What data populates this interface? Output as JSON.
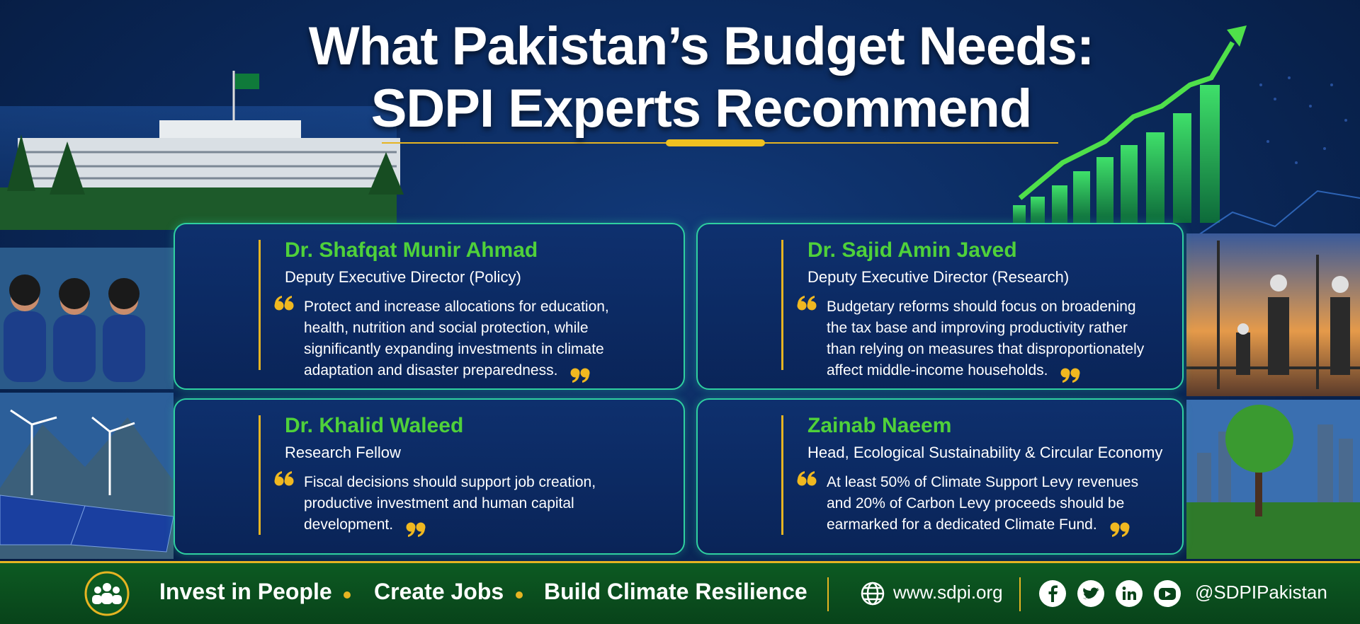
{
  "header": {
    "title_lines": [
      "What Pakistan’s Budget Needs:",
      "SDPI Experts Recommend"
    ]
  },
  "experts": [
    {
      "name": "Dr. Shafqat Munir Ahmad",
      "role": "Deputy Executive Director (Policy)",
      "quote": "Protect and increase allocations for education, health, nutrition and social protection, while significantly expanding investments in climate adaptation and disaster preparedness."
    },
    {
      "name": "Dr. Sajid Amin Javed",
      "role": "Deputy Executive Director (Research)",
      "quote": "Budgetary reforms should focus on broadening the tax base and improving productivity rather than relying on measures that disproportionately affect middle-income households."
    },
    {
      "name": "Dr. Khalid Waleed",
      "role": "Research Fellow",
      "quote": "Fiscal decisions should support job creation, productive investment and human capital development."
    },
    {
      "name": "Zainab Naeem",
      "role": "Head, Ecological Sustainability & Circular Economy",
      "quote": "At least 50% of Climate Support Levy revenues and 20% of Carbon Levy proceeds should be earmarked for a dedicated Climate Fund."
    }
  ],
  "footer": {
    "pillars": [
      "Invest in People",
      "Create Jobs",
      "Build Climate Resilience"
    ],
    "website": "www.sdpi.org",
    "handle": "@SDPIPakistan"
  }
}
